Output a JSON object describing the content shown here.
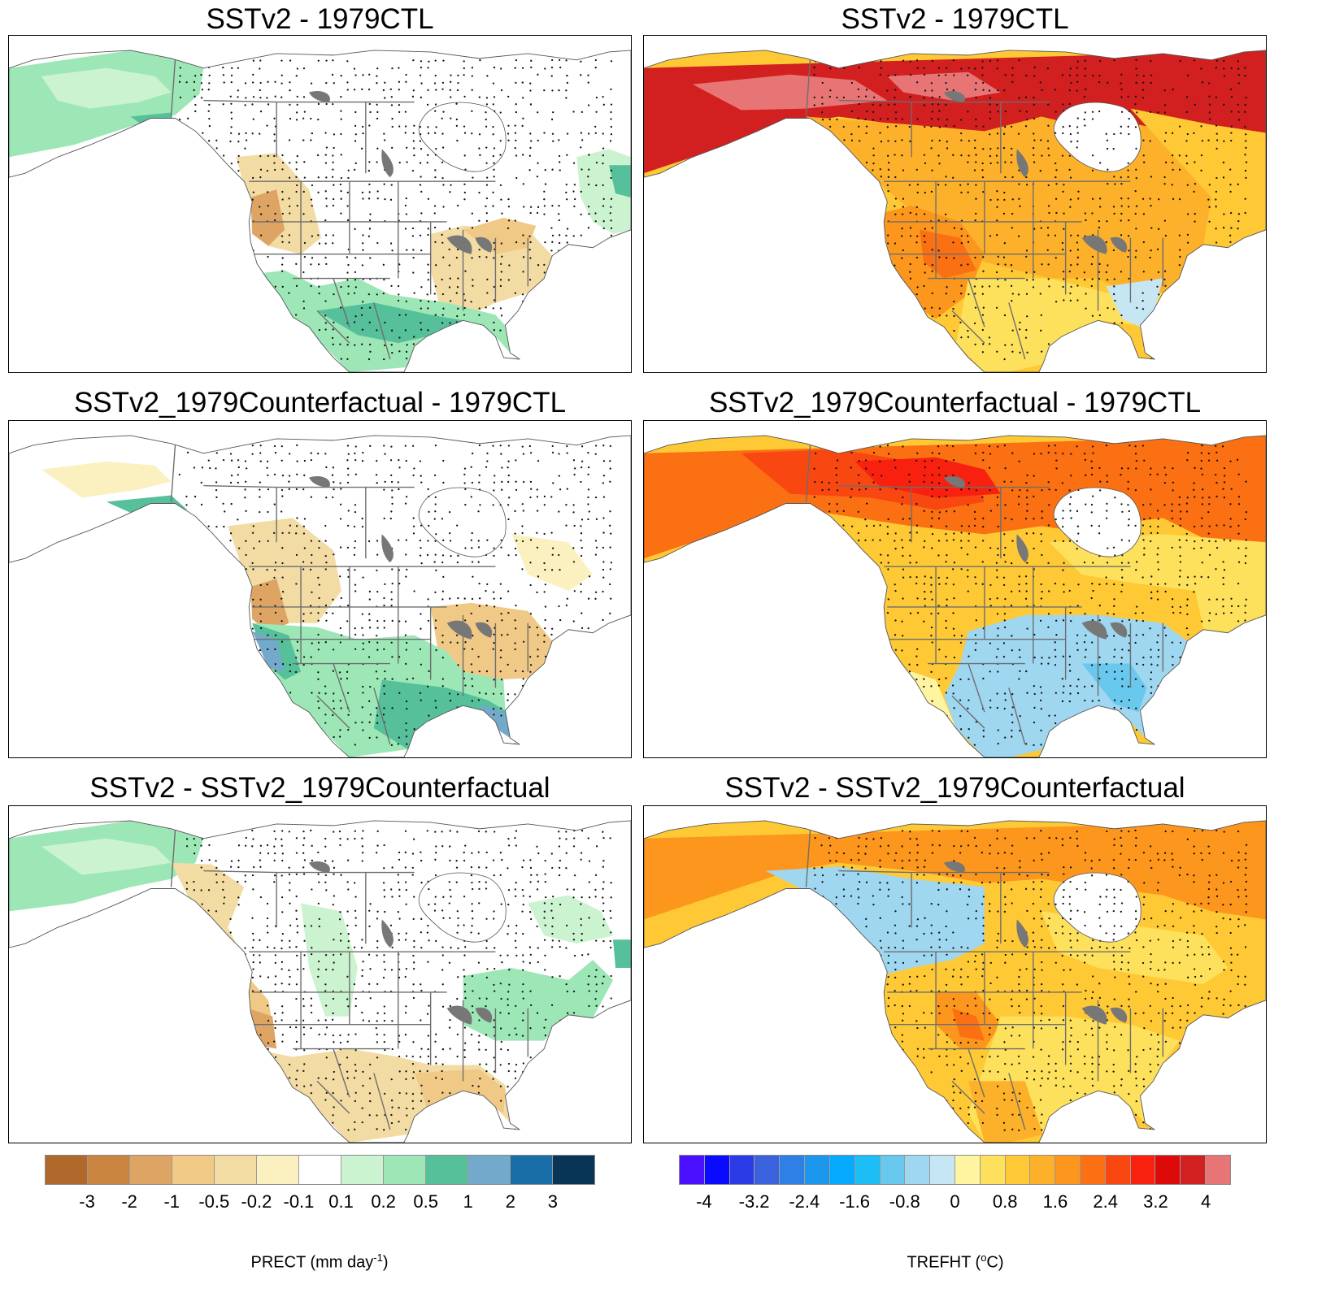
{
  "panels": [
    {
      "title": "SSTv2 - 1979CTL",
      "variable": "precip",
      "pattern": "p1"
    },
    {
      "title": "SSTv2 - 1979CTL",
      "variable": "temp",
      "pattern": "t1"
    },
    {
      "title": "SSTv2_1979Counterfactual - 1979CTL",
      "variable": "precip",
      "pattern": "p2"
    },
    {
      "title": "SSTv2_1979Counterfactual - 1979CTL",
      "variable": "temp",
      "pattern": "t2"
    },
    {
      "title": "SSTv2 - SSTv2_1979Counterfactual",
      "variable": "precip",
      "pattern": "p3"
    },
    {
      "title": "SSTv2 - SSTv2_1979Counterfactual",
      "variable": "temp",
      "pattern": "t3"
    }
  ],
  "precip_colorbar": {
    "label_main": "PRECT (mm day",
    "label_sup": "-1",
    "label_end": ")",
    "ticks": [
      "-3",
      "-2",
      "-1",
      "-0.5",
      "-0.2",
      "-0.1",
      "0.1",
      "0.2",
      "0.5",
      "1",
      "2",
      "3"
    ],
    "colors": [
      "#b0692a",
      "#c98440",
      "#dea463",
      "#f0c987",
      "#f3dca4",
      "#fbf1c0",
      "#ffffff",
      "#ccf3d0",
      "#9de7b6",
      "#55c09a",
      "#73aacb",
      "#1a6ea8",
      "#083556"
    ]
  },
  "temp_colorbar": {
    "label_main": "TREFHT (",
    "label_sup": "o",
    "label_end": "C)",
    "ticks": [
      "-4",
      "-3.2",
      "-2.4",
      "-1.6",
      "-0.8",
      "0",
      "0.8",
      "1.6",
      "2.4",
      "3.2",
      "4"
    ],
    "colors": [
      "#4a0fff",
      "#0a0aff",
      "#2b3ce6",
      "#3a62dc",
      "#2f80e6",
      "#1b97ee",
      "#05aaff",
      "#1dbef5",
      "#68c8ee",
      "#9fd6f0",
      "#c6e6f4",
      "#fff5a0",
      "#fde15c",
      "#fec935",
      "#fdb12a",
      "#fc961d",
      "#fa7012",
      "#f94711",
      "#f8200f",
      "#dd0a0a",
      "#d21f1f",
      "#e87575"
    ]
  }
}
